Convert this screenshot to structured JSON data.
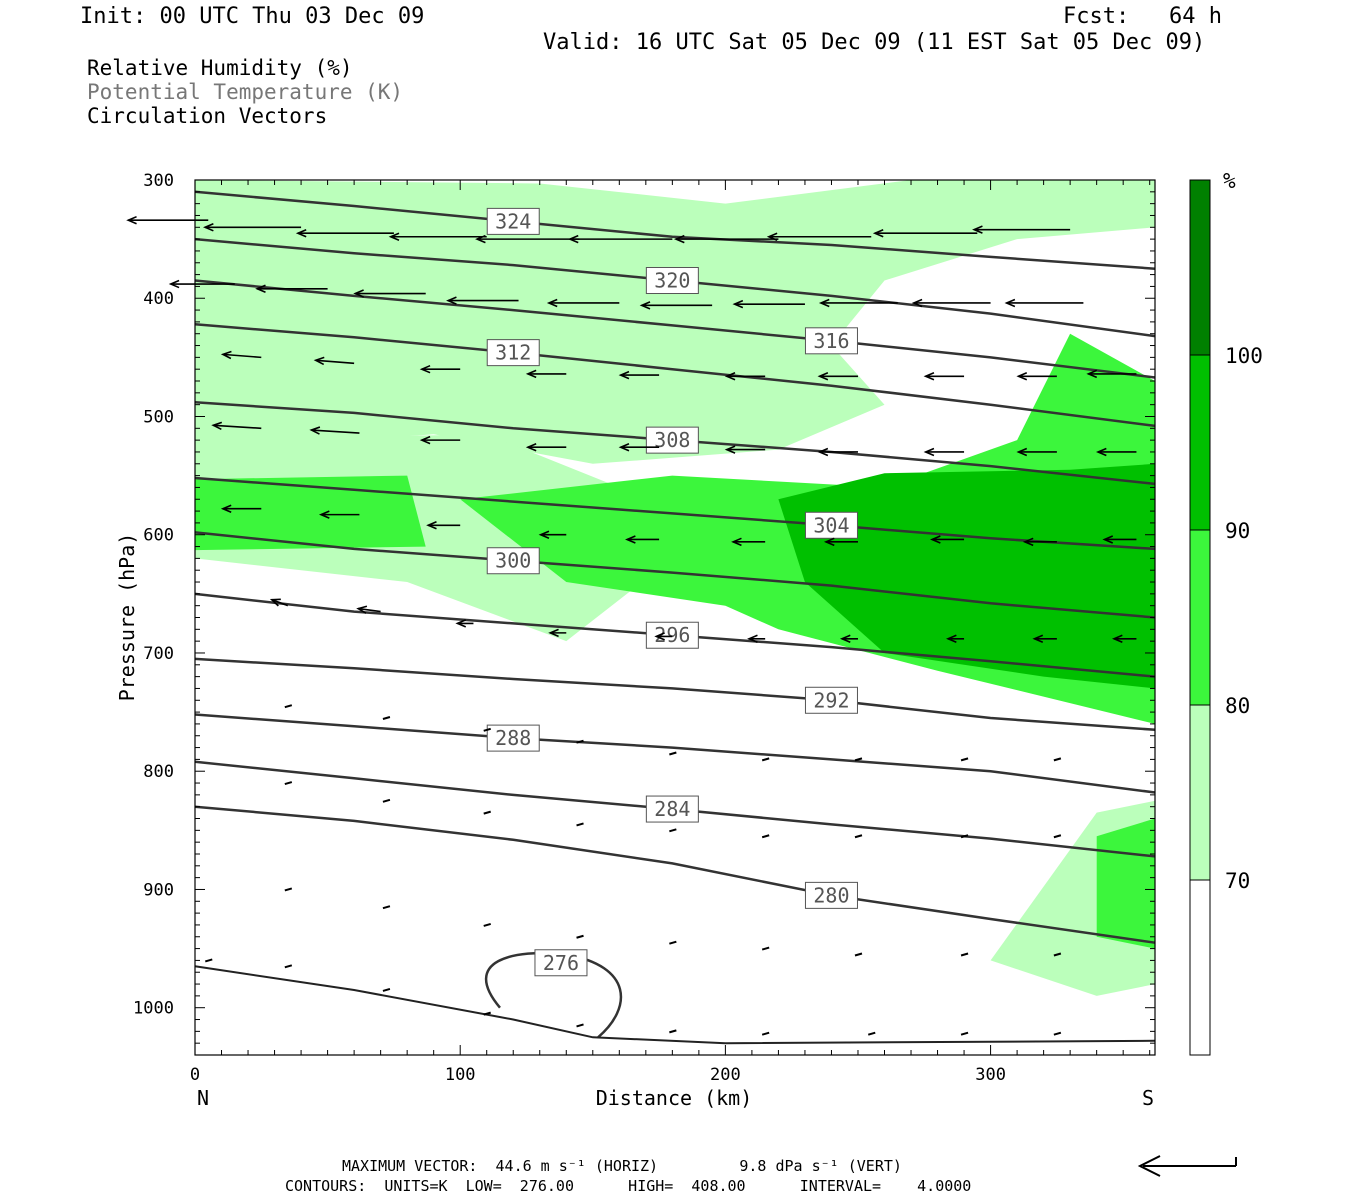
{
  "header": {
    "init": "Init: 00 UTC Thu 03 Dec 09",
    "fcst": "Fcst:   64 h",
    "valid": "Valid: 16 UTC Sat 05 Dec 09 (11 EST Sat 05 Dec 09)"
  },
  "legend": {
    "line1": "Relative Humidity (%)",
    "line2": "Potential Temperature (K)",
    "line3": "Circulation Vectors"
  },
  "footer": {
    "max_vector": "MAXIMUM VECTOR:  44.6 m s⁻¹ (HORIZ)         9.8 dPa s⁻¹ (VERT)",
    "contours": "CONTOURS:  UNITS=K  LOW=  276.00      HIGH=  408.00      INTERVAL=    4.0000"
  },
  "colors": {
    "rh_70_80": "#bbffbb",
    "rh_80_90": "#3cf63c",
    "rh_90_100": "#00c000",
    "rh_100": "#008000",
    "theta_line": "#333333"
  },
  "chart_data": {
    "type": "contour",
    "xlabel": "Distance (km)",
    "ylabel": "Pressure (hPa)",
    "xlim": [
      0,
      362
    ],
    "ylim": [
      1040,
      300
    ],
    "x_ticks": [
      "0",
      "100",
      "200",
      "300"
    ],
    "y_ticks": [
      "300",
      "400",
      "500",
      "600",
      "700",
      "800",
      "900",
      "1000"
    ],
    "x_end_labels": {
      "left": "N",
      "right": "S"
    },
    "colorbar": {
      "unit": "%",
      "levels": [
        "70",
        "80",
        "90",
        "100"
      ]
    },
    "theta_contours": [
      {
        "label": "324",
        "points": [
          [
            0,
            310
          ],
          [
            60,
            322
          ],
          [
            120,
            335
          ],
          [
            180,
            348
          ],
          [
            240,
            355
          ],
          [
            300,
            365
          ],
          [
            362,
            375
          ]
        ]
      },
      {
        "label": "320",
        "points": [
          [
            0,
            350
          ],
          [
            60,
            362
          ],
          [
            120,
            372
          ],
          [
            180,
            385
          ],
          [
            240,
            398
          ],
          [
            300,
            413
          ],
          [
            362,
            432
          ]
        ]
      },
      {
        "label": "316",
        "points": [
          [
            0,
            385
          ],
          [
            60,
            398
          ],
          [
            120,
            410
          ],
          [
            180,
            423
          ],
          [
            240,
            436
          ],
          [
            300,
            450
          ],
          [
            362,
            467
          ]
        ]
      },
      {
        "label": "312",
        "points": [
          [
            0,
            422
          ],
          [
            60,
            433
          ],
          [
            120,
            446
          ],
          [
            180,
            460
          ],
          [
            240,
            474
          ],
          [
            300,
            490
          ],
          [
            362,
            508
          ]
        ]
      },
      {
        "label": "308",
        "points": [
          [
            0,
            488
          ],
          [
            60,
            497
          ],
          [
            120,
            510
          ],
          [
            180,
            520
          ],
          [
            240,
            530
          ],
          [
            300,
            542
          ],
          [
            362,
            557
          ]
        ]
      },
      {
        "label": "304",
        "points": [
          [
            0,
            552
          ],
          [
            60,
            562
          ],
          [
            120,
            572
          ],
          [
            180,
            582
          ],
          [
            240,
            592
          ],
          [
            300,
            603
          ],
          [
            362,
            612
          ]
        ]
      },
      {
        "label": "300",
        "points": [
          [
            0,
            598
          ],
          [
            60,
            612
          ],
          [
            120,
            622
          ],
          [
            180,
            632
          ],
          [
            240,
            643
          ],
          [
            300,
            658
          ],
          [
            362,
            670
          ]
        ]
      },
      {
        "label": "296",
        "points": [
          [
            0,
            650
          ],
          [
            60,
            665
          ],
          [
            120,
            675
          ],
          [
            180,
            685
          ],
          [
            240,
            695
          ],
          [
            300,
            707
          ],
          [
            362,
            720
          ]
        ]
      },
      {
        "label": "292",
        "points": [
          [
            0,
            705
          ],
          [
            60,
            713
          ],
          [
            120,
            722
          ],
          [
            180,
            730
          ],
          [
            240,
            740
          ],
          [
            300,
            755
          ],
          [
            362,
            765
          ]
        ]
      },
      {
        "label": "288",
        "points": [
          [
            0,
            752
          ],
          [
            60,
            762
          ],
          [
            120,
            772
          ],
          [
            180,
            780
          ],
          [
            240,
            790
          ],
          [
            300,
            800
          ],
          [
            362,
            818
          ]
        ]
      },
      {
        "label": "284",
        "points": [
          [
            0,
            792
          ],
          [
            60,
            806
          ],
          [
            120,
            820
          ],
          [
            180,
            832
          ],
          [
            240,
            845
          ],
          [
            300,
            857
          ],
          [
            362,
            872
          ]
        ]
      },
      {
        "label": "280",
        "points": [
          [
            0,
            830
          ],
          [
            60,
            842
          ],
          [
            120,
            858
          ],
          [
            180,
            878
          ],
          [
            240,
            905
          ],
          [
            300,
            925
          ],
          [
            362,
            945
          ]
        ]
      }
    ],
    "low_contour_label": "276",
    "rh_70_region": [
      [
        0,
        530
      ],
      [
        90,
        515
      ],
      [
        150,
        540
      ],
      [
        220,
        528
      ],
      [
        260,
        490
      ],
      [
        240,
        440
      ],
      [
        260,
        385
      ],
      [
        310,
        350
      ],
      [
        362,
        340
      ],
      [
        362,
        300
      ],
      [
        270,
        300
      ],
      [
        200,
        320
      ],
      [
        130,
        303
      ],
      [
        0,
        300
      ]
    ],
    "rh_80_region": [
      [
        0,
        553
      ],
      [
        80,
        550
      ],
      [
        87,
        610
      ],
      [
        0,
        613
      ]
    ],
    "rh_80_region_2": [
      [
        100,
        570
      ],
      [
        180,
        550
      ],
      [
        260,
        560
      ],
      [
        310,
        520
      ],
      [
        330,
        430
      ],
      [
        362,
        470
      ],
      [
        362,
        760
      ],
      [
        280,
        715
      ],
      [
        220,
        680
      ],
      [
        200,
        660
      ],
      [
        140,
        640
      ]
    ],
    "rh_90_region": [
      [
        220,
        570
      ],
      [
        260,
        548
      ],
      [
        330,
        545
      ],
      [
        362,
        540
      ],
      [
        362,
        730
      ],
      [
        320,
        720
      ],
      [
        260,
        700
      ],
      [
        230,
        640
      ]
    ],
    "rh_low_blob": [
      [
        340,
        855
      ],
      [
        362,
        840
      ],
      [
        362,
        950
      ],
      [
        340,
        940
      ]
    ],
    "vectors": [
      {
        "x": 5,
        "p": 334,
        "u": -25,
        "w": 0
      },
      {
        "x": 40,
        "p": 340,
        "u": -30,
        "w": 0
      },
      {
        "x": 75,
        "p": 345,
        "u": -30,
        "w": 0
      },
      {
        "x": 110,
        "p": 348,
        "u": -30,
        "w": 0
      },
      {
        "x": 145,
        "p": 350,
        "u": -32,
        "w": 0
      },
      {
        "x": 180,
        "p": 350,
        "u": -32,
        "w": 0
      },
      {
        "x": 220,
        "p": 350,
        "u": -32,
        "w": 0
      },
      {
        "x": 255,
        "p": 348,
        "u": -32,
        "w": 0
      },
      {
        "x": 295,
        "p": 345,
        "u": -32,
        "w": 0
      },
      {
        "x": 330,
        "p": 342,
        "u": -30,
        "w": 0
      },
      {
        "x": 15,
        "p": 388,
        "u": -20,
        "w": 0
      },
      {
        "x": 50,
        "p": 392,
        "u": -22,
        "w": 0
      },
      {
        "x": 87,
        "p": 396,
        "u": -22,
        "w": 0
      },
      {
        "x": 122,
        "p": 402,
        "u": -22,
        "w": 0
      },
      {
        "x": 160,
        "p": 404,
        "u": -22,
        "w": 0
      },
      {
        "x": 195,
        "p": 406,
        "u": -22,
        "w": 0
      },
      {
        "x": 230,
        "p": 405,
        "u": -22,
        "w": 0
      },
      {
        "x": 265,
        "p": 404,
        "u": -24,
        "w": 0
      },
      {
        "x": 300,
        "p": 404,
        "u": -24,
        "w": 0
      },
      {
        "x": 335,
        "p": 404,
        "u": -24,
        "w": 0
      },
      {
        "x": 25,
        "p": 450,
        "u": -12,
        "w": 1
      },
      {
        "x": 60,
        "p": 455,
        "u": -12,
        "w": 1
      },
      {
        "x": 100,
        "p": 460,
        "u": -12,
        "w": 0
      },
      {
        "x": 140,
        "p": 464,
        "u": -12,
        "w": 0
      },
      {
        "x": 175,
        "p": 465,
        "u": -12,
        "w": 0
      },
      {
        "x": 215,
        "p": 466,
        "u": -12,
        "w": 0
      },
      {
        "x": 250,
        "p": 466,
        "u": -12,
        "w": 0
      },
      {
        "x": 290,
        "p": 466,
        "u": -12,
        "w": 0
      },
      {
        "x": 325,
        "p": 466,
        "u": -12,
        "w": 0
      },
      {
        "x": 355,
        "p": 464,
        "u": -15,
        "w": 0
      },
      {
        "x": 25,
        "p": 510,
        "u": -15,
        "w": 1
      },
      {
        "x": 62,
        "p": 514,
        "u": -15,
        "w": 1
      },
      {
        "x": 100,
        "p": 520,
        "u": -12,
        "w": 0
      },
      {
        "x": 140,
        "p": 526,
        "u": -12,
        "w": 0
      },
      {
        "x": 175,
        "p": 526,
        "u": -12,
        "w": 0
      },
      {
        "x": 215,
        "p": 528,
        "u": -12,
        "w": 0
      },
      {
        "x": 250,
        "p": 530,
        "u": -12,
        "w": 0
      },
      {
        "x": 290,
        "p": 530,
        "u": -12,
        "w": 0
      },
      {
        "x": 325,
        "p": 530,
        "u": -12,
        "w": 0
      },
      {
        "x": 355,
        "p": 530,
        "u": -12,
        "w": 0
      },
      {
        "x": 25,
        "p": 578,
        "u": -12,
        "w": 0
      },
      {
        "x": 62,
        "p": 583,
        "u": -12,
        "w": 0
      },
      {
        "x": 100,
        "p": 592,
        "u": -10,
        "w": 0
      },
      {
        "x": 140,
        "p": 600,
        "u": -8,
        "w": 0
      },
      {
        "x": 175,
        "p": 604,
        "u": -10,
        "w": 0
      },
      {
        "x": 215,
        "p": 606,
        "u": -10,
        "w": 0
      },
      {
        "x": 250,
        "p": 606,
        "u": -10,
        "w": 0
      },
      {
        "x": 290,
        "p": 604,
        "u": -10,
        "w": 0
      },
      {
        "x": 325,
        "p": 606,
        "u": -10,
        "w": 0
      },
      {
        "x": 355,
        "p": 604,
        "u": -10,
        "w": 0
      },
      {
        "x": 35,
        "p": 660,
        "u": -5,
        "w": 2
      },
      {
        "x": 70,
        "p": 665,
        "u": -7,
        "w": 1
      },
      {
        "x": 105,
        "p": 675,
        "u": -5,
        "w": 0
      },
      {
        "x": 140,
        "p": 683,
        "u": -5,
        "w": 0
      },
      {
        "x": 180,
        "p": 686,
        "u": -5,
        "w": 0
      },
      {
        "x": 215,
        "p": 688,
        "u": -5,
        "w": 0
      },
      {
        "x": 250,
        "p": 688,
        "u": -5,
        "w": 0
      },
      {
        "x": 290,
        "p": 688,
        "u": -5,
        "w": 0
      },
      {
        "x": 325,
        "p": 688,
        "u": -7,
        "w": 0
      },
      {
        "x": 355,
        "p": 688,
        "u": -7,
        "w": 0
      }
    ]
  }
}
